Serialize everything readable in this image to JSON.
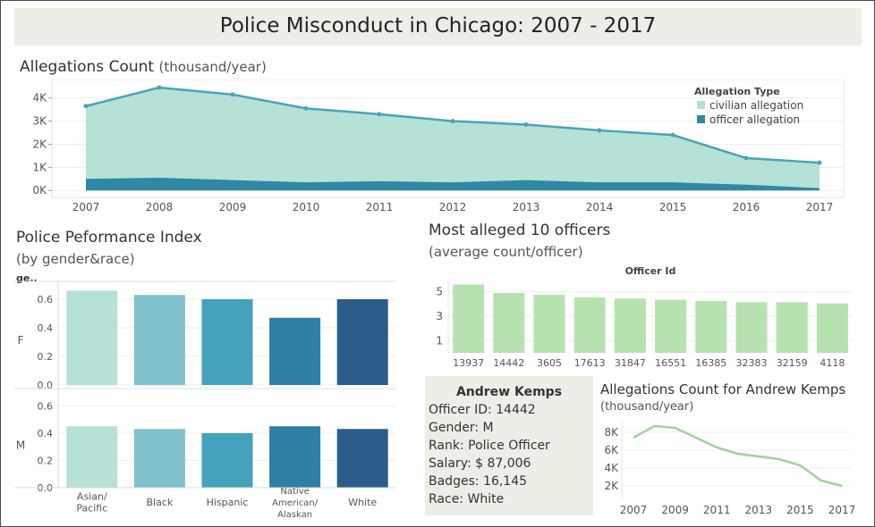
{
  "dashboard": {
    "title": "Police Misconduct in Chicago: 2007 - 2017"
  },
  "allegations": {
    "title": "Allegations Count",
    "subtitle": "(thousand/year)",
    "legend_title": "Allegation Type",
    "legend": [
      {
        "label": "civilian allegation",
        "color": "#b6e1d6"
      },
      {
        "label": "officer allegation",
        "color": "#2f89a4"
      }
    ]
  },
  "performance": {
    "title": "Police Peformance Index",
    "subtitle": "(by gender&race)",
    "row_header": "ge.."
  },
  "officers": {
    "title": "Most alleged  10 officers",
    "subtitle": "(average count/officer)",
    "axis_title": "Officer Id"
  },
  "kemps_chart": {
    "title": "Allegations Count for Andrew Kemps",
    "subtitle": "(thousand/year)"
  },
  "officer_card": {
    "name": "Andrew  Kemps",
    "lines": [
      "Officer ID: 14442",
      "Gender: M",
      "Rank: Police Officer",
      "Salary: $ 87,006",
      "Badges: 16,145",
      "Race: White"
    ]
  },
  "chart_data": [
    {
      "id": "allegations",
      "type": "area",
      "x": [
        2007,
        2008,
        2009,
        2010,
        2011,
        2012,
        2013,
        2014,
        2015,
        2016,
        2017
      ],
      "series": [
        {
          "name": "civilian allegation",
          "values": [
            3.65,
            4.45,
            4.15,
            3.55,
            3.3,
            3.0,
            2.85,
            2.6,
            2.4,
            1.4,
            1.2
          ],
          "color": "#b6e1d6",
          "line_color": "#4aa3bc"
        },
        {
          "name": "officer allegation",
          "values": [
            0.5,
            0.55,
            0.45,
            0.35,
            0.4,
            0.35,
            0.45,
            0.35,
            0.35,
            0.25,
            0.1
          ],
          "color": "#2f89a4"
        }
      ],
      "yticks": [
        0,
        1,
        2,
        3,
        4
      ],
      "ytick_labels": [
        "0K",
        "1K",
        "2K",
        "3K",
        "4K"
      ],
      "xtick_labels": [
        "2007",
        "2008",
        "2009",
        "2010",
        "2011",
        "2012",
        "2013",
        "2014",
        "2015",
        "2016",
        "2017"
      ],
      "ylim": [
        -0.3,
        4.8
      ],
      "grid": true,
      "legend_position": "top-right"
    },
    {
      "id": "performance",
      "type": "bar",
      "categories": [
        "Asian/ Pacific",
        "Black",
        "Hispanic",
        "Native American/ Alaskan",
        "White"
      ],
      "category_lines": [
        [
          "Asian/",
          "Pacific"
        ],
        [
          "Black"
        ],
        [
          "Hispanic"
        ],
        [
          "Native",
          "American/",
          "Alaskan"
        ],
        [
          "White"
        ]
      ],
      "colors": [
        "#b6e1d6",
        "#7fc2cb",
        "#45a2bc",
        "#2f7ea3",
        "#2b5d8a"
      ],
      "series": [
        {
          "name": "F",
          "values": [
            0.66,
            0.63,
            0.6,
            0.47,
            0.6
          ]
        },
        {
          "name": "M",
          "values": [
            0.45,
            0.43,
            0.4,
            0.45,
            0.43
          ]
        }
      ],
      "yticks": [
        0.0,
        0.2,
        0.4,
        0.6
      ],
      "ytick_labels": [
        "0.0",
        "0.2",
        "0.4",
        "0.6"
      ],
      "ylim": [
        0,
        0.7
      ],
      "grid": true
    },
    {
      "id": "officers",
      "type": "bar",
      "categories": [
        "13937",
        "14442",
        "3605",
        "17613",
        "31847",
        "16551",
        "16385",
        "32383",
        "32159",
        "4118"
      ],
      "values": [
        5.6,
        4.9,
        4.75,
        4.55,
        4.45,
        4.35,
        4.25,
        4.15,
        4.15,
        4.05
      ],
      "color": "#b6e2b0",
      "xlabel": "Officer Id",
      "yticks": [
        1,
        3,
        5
      ],
      "ytick_labels": [
        "1",
        "3",
        "5"
      ],
      "ylim": [
        0,
        6
      ],
      "grid": true
    },
    {
      "id": "kemps",
      "type": "line",
      "x": [
        2007,
        2008,
        2009,
        2010,
        2011,
        2012,
        2013,
        2014,
        2015,
        2016,
        2017
      ],
      "values": [
        7.4,
        8.7,
        8.5,
        7.4,
        6.3,
        5.6,
        5.3,
        5.0,
        4.3,
        2.6,
        2.0
      ],
      "color": "#9fd49a",
      "yticks": [
        2,
        4,
        6,
        8
      ],
      "ytick_labels": [
        "2K",
        "4K",
        "6K",
        "8K"
      ],
      "xtick_values": [
        2007,
        2009,
        2011,
        2013,
        2015,
        2017
      ],
      "xtick_labels": [
        "2007",
        "2009",
        "2011",
        "2013",
        "2015",
        "2017"
      ],
      "ylim": [
        0.5,
        9.3
      ],
      "grid": true
    }
  ]
}
